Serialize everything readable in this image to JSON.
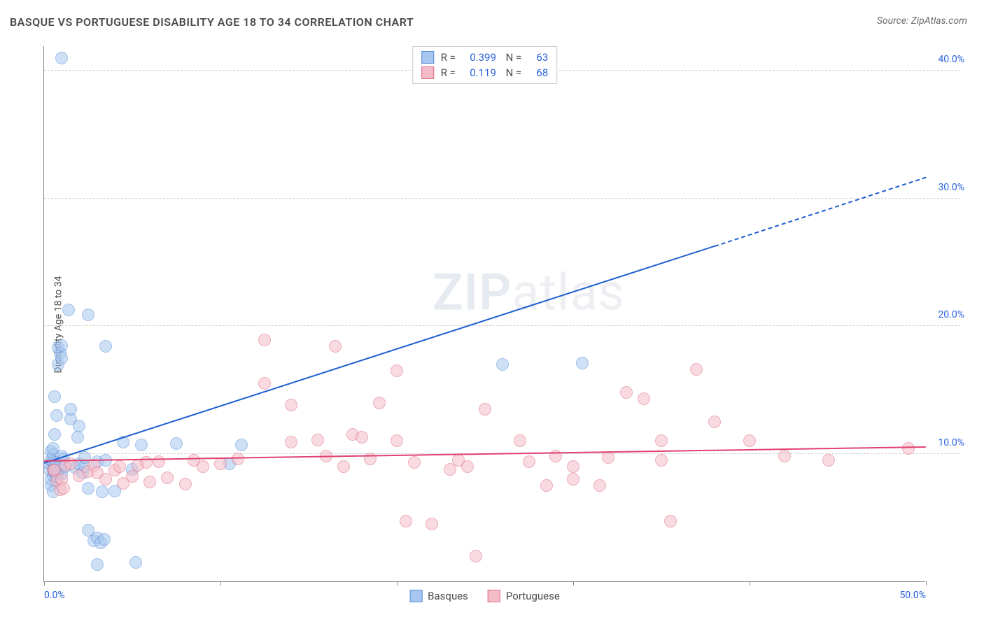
{
  "title": "BASQUE VS PORTUGUESE DISABILITY AGE 18 TO 34 CORRELATION CHART",
  "source": "Source: ZipAtlas.com",
  "ylabel": "Disability Age 18 to 34",
  "watermark_zip": "ZIP",
  "watermark_atlas": "atlas",
  "chart": {
    "type": "scatter",
    "xlim": [
      0,
      50
    ],
    "ylim": [
      0,
      42
    ],
    "xtick_positions": [
      0,
      10,
      20,
      30,
      40,
      50
    ],
    "xtick_labels_shown": {
      "0": "0.0%",
      "50": "50.0%"
    },
    "ytick_positions": [
      10,
      20,
      30,
      40
    ],
    "ytick_labels": [
      "10.0%",
      "20.0%",
      "30.0%",
      "40.0%"
    ],
    "grid_color": "#d0d0d0",
    "axis_color": "#888888",
    "label_color": "#2962d9",
    "point_radius": 9,
    "point_opacity": 0.55,
    "series": [
      {
        "name": "Basques",
        "fill": "#a7c7f0",
        "stroke": "#5a8fd6",
        "trend_color": "#1f5fd0",
        "r": "0.399",
        "n": "63",
        "trend": {
          "x1": 0,
          "y1": 9.2,
          "x2": 38,
          "y2": 26.2,
          "dash_to_x": 50,
          "dash_to_y": 31.6
        },
        "points": [
          [
            0.3,
            8.7
          ],
          [
            0.3,
            9.2
          ],
          [
            0.4,
            7.5
          ],
          [
            0.4,
            8.0
          ],
          [
            0.4,
            9.5
          ],
          [
            0.4,
            10.2
          ],
          [
            0.5,
            7.0
          ],
          [
            0.5,
            8.3
          ],
          [
            0.5,
            8.8
          ],
          [
            0.5,
            9.4
          ],
          [
            0.5,
            9.9
          ],
          [
            0.5,
            10.4
          ],
          [
            0.6,
            8.5
          ],
          [
            0.6,
            9.0
          ],
          [
            0.6,
            11.5
          ],
          [
            0.6,
            14.5
          ],
          [
            0.7,
            8.2
          ],
          [
            0.7,
            9.3
          ],
          [
            0.7,
            13.0
          ],
          [
            0.8,
            8.6
          ],
          [
            0.8,
            17.0
          ],
          [
            0.8,
            18.3
          ],
          [
            0.9,
            9.1
          ],
          [
            0.9,
            17.9
          ],
          [
            1.0,
            8.4
          ],
          [
            1.0,
            9.8
          ],
          [
            1.0,
            17.5
          ],
          [
            1.0,
            18.5
          ],
          [
            1.0,
            41.0
          ],
          [
            1.1,
            9.6
          ],
          [
            1.2,
            9.0
          ],
          [
            1.4,
            21.3
          ],
          [
            1.5,
            12.7
          ],
          [
            1.5,
            13.5
          ],
          [
            1.8,
            8.9
          ],
          [
            1.9,
            11.3
          ],
          [
            2.0,
            9.2
          ],
          [
            2.0,
            12.2
          ],
          [
            2.2,
            8.5
          ],
          [
            2.3,
            9.0
          ],
          [
            2.3,
            9.7
          ],
          [
            2.5,
            4.0
          ],
          [
            2.5,
            7.3
          ],
          [
            2.5,
            20.9
          ],
          [
            2.8,
            3.2
          ],
          [
            3.0,
            1.3
          ],
          [
            3.0,
            3.4
          ],
          [
            3.0,
            9.4
          ],
          [
            3.2,
            3.0
          ],
          [
            3.3,
            7.0
          ],
          [
            3.4,
            3.3
          ],
          [
            3.5,
            9.5
          ],
          [
            3.5,
            18.4
          ],
          [
            4.0,
            7.1
          ],
          [
            4.5,
            10.9
          ],
          [
            5.0,
            8.8
          ],
          [
            5.2,
            1.5
          ],
          [
            5.5,
            10.7
          ],
          [
            7.5,
            10.8
          ],
          [
            10.5,
            9.2
          ],
          [
            11.2,
            10.7
          ],
          [
            26.0,
            17.0
          ],
          [
            30.5,
            17.1
          ]
        ]
      },
      {
        "name": "Portuguese",
        "fill": "#f4bcc8",
        "stroke": "#e06b87",
        "trend_color": "#e0416f",
        "r": "0.119",
        "n": "68",
        "trend": {
          "x1": 0,
          "y1": 9.4,
          "x2": 50,
          "y2": 10.5
        },
        "points": [
          [
            0.5,
            8.7
          ],
          [
            0.6,
            8.7
          ],
          [
            0.7,
            7.9
          ],
          [
            0.9,
            7.2
          ],
          [
            1.0,
            8.0
          ],
          [
            1.1,
            7.3
          ],
          [
            1.2,
            9.1
          ],
          [
            1.5,
            9.2
          ],
          [
            2.0,
            8.3
          ],
          [
            2.5,
            8.6
          ],
          [
            2.8,
            9.1
          ],
          [
            3.0,
            8.5
          ],
          [
            3.5,
            8.0
          ],
          [
            4.0,
            8.7
          ],
          [
            4.3,
            9.0
          ],
          [
            4.5,
            7.7
          ],
          [
            5.0,
            8.2
          ],
          [
            5.3,
            9.1
          ],
          [
            5.8,
            9.3
          ],
          [
            6.0,
            7.8
          ],
          [
            6.5,
            9.4
          ],
          [
            7.0,
            8.1
          ],
          [
            8.0,
            7.6
          ],
          [
            8.5,
            9.5
          ],
          [
            9.0,
            9.0
          ],
          [
            10.0,
            9.2
          ],
          [
            11.0,
            9.6
          ],
          [
            12.5,
            15.5
          ],
          [
            12.5,
            18.9
          ],
          [
            14.0,
            13.8
          ],
          [
            14.0,
            10.9
          ],
          [
            15.5,
            11.1
          ],
          [
            16.0,
            9.8
          ],
          [
            16.5,
            18.4
          ],
          [
            17.0,
            9.0
          ],
          [
            17.5,
            11.5
          ],
          [
            18.0,
            11.3
          ],
          [
            18.5,
            9.6
          ],
          [
            19.0,
            14.0
          ],
          [
            20.0,
            11.0
          ],
          [
            20.0,
            16.5
          ],
          [
            20.5,
            4.7
          ],
          [
            21.0,
            9.3
          ],
          [
            22.0,
            4.5
          ],
          [
            23.0,
            8.8
          ],
          [
            23.5,
            9.5
          ],
          [
            24.0,
            9.0
          ],
          [
            24.5,
            2.0
          ],
          [
            25.0,
            13.5
          ],
          [
            27.0,
            11.0
          ],
          [
            27.5,
            9.4
          ],
          [
            28.5,
            7.5
          ],
          [
            29.0,
            9.8
          ],
          [
            30.0,
            8.0
          ],
          [
            30.0,
            9.0
          ],
          [
            31.5,
            7.5
          ],
          [
            32.0,
            9.7
          ],
          [
            33.0,
            14.8
          ],
          [
            34.0,
            14.3
          ],
          [
            35.0,
            11.0
          ],
          [
            35.0,
            9.5
          ],
          [
            35.5,
            4.7
          ],
          [
            37.0,
            16.6
          ],
          [
            38.0,
            12.5
          ],
          [
            40.0,
            11.0
          ],
          [
            42.0,
            9.8
          ],
          [
            44.5,
            9.5
          ],
          [
            49.0,
            10.4
          ]
        ]
      }
    ],
    "legend_top_labels": {
      "r_prefix": "R =",
      "n_prefix": "N ="
    },
    "legend_bottom": [
      "Basques",
      "Portuguese"
    ]
  }
}
